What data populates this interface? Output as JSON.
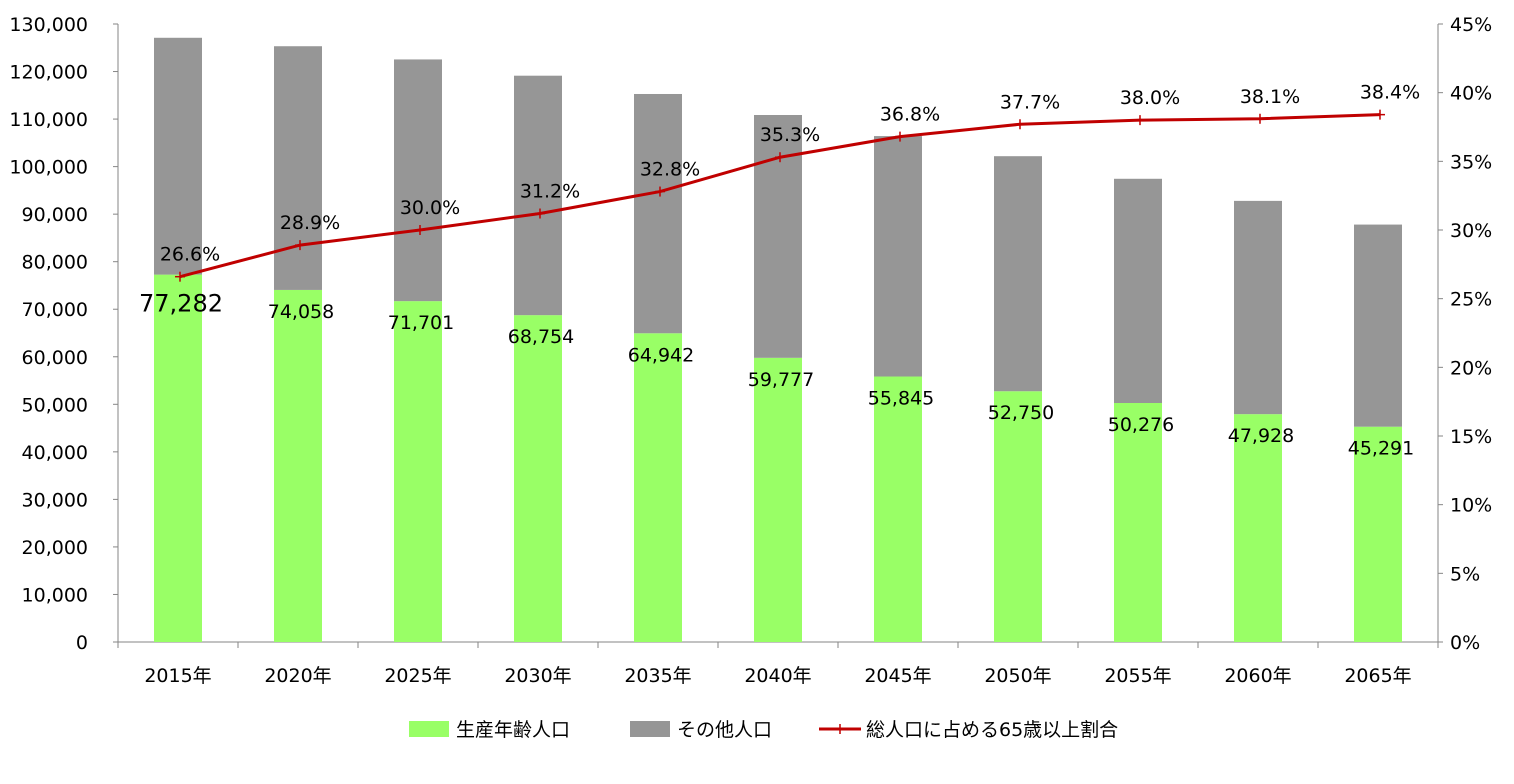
{
  "chart_data": {
    "type": "bar",
    "stacked": true,
    "categories": [
      "2015年",
      "2020年",
      "2025年",
      "2030年",
      "2035年",
      "2040年",
      "2045年",
      "2050年",
      "2055年",
      "2060年",
      "2065年"
    ],
    "series": [
      {
        "name": "生産年齢人口",
        "type": "bar",
        "axis": "left",
        "color": "#99ff66",
        "values": [
          77282,
          74058,
          71701,
          68754,
          64942,
          59777,
          55845,
          52750,
          50276,
          47928,
          45291
        ],
        "labels": [
          "77,282",
          "74,058",
          "71,701",
          "68,754",
          "64,942",
          "59,777",
          "55,845",
          "52,750",
          "50,276",
          "47,928",
          "45,291"
        ]
      },
      {
        "name": "その他人口",
        "type": "bar",
        "axis": "left",
        "color": "#969696",
        "values": [
          49818,
          51267,
          50843,
          50371,
          50334,
          51080,
          50577,
          49442,
          47165,
          44864,
          42517
        ]
      },
      {
        "name": "総人口に占める65歳以上割合",
        "type": "line",
        "axis": "right",
        "color": "#c00000",
        "values": [
          26.6,
          28.9,
          30.0,
          31.2,
          32.8,
          35.3,
          36.8,
          37.7,
          38.0,
          38.1,
          38.4
        ],
        "labels": [
          "26.6%",
          "28.9%",
          "30.0%",
          "31.2%",
          "32.8%",
          "35.3%",
          "36.8%",
          "37.7%",
          "38.0%",
          "38.1%",
          "38.4%"
        ]
      }
    ],
    "y_left": {
      "min": 0,
      "max": 130000,
      "step": 10000,
      "ticks": [
        "0",
        "10,000",
        "20,000",
        "30,000",
        "40,000",
        "50,000",
        "60,000",
        "70,000",
        "80,000",
        "90,000",
        "100,000",
        "110,000",
        "120,000",
        "130,000"
      ]
    },
    "y_right": {
      "min": 0,
      "max": 45,
      "step": 5,
      "ticks": [
        "0%",
        "5%",
        "10%",
        "15%",
        "20%",
        "25%",
        "30%",
        "35%",
        "40%",
        "45%"
      ]
    },
    "grid": false,
    "legend": "bottom"
  }
}
